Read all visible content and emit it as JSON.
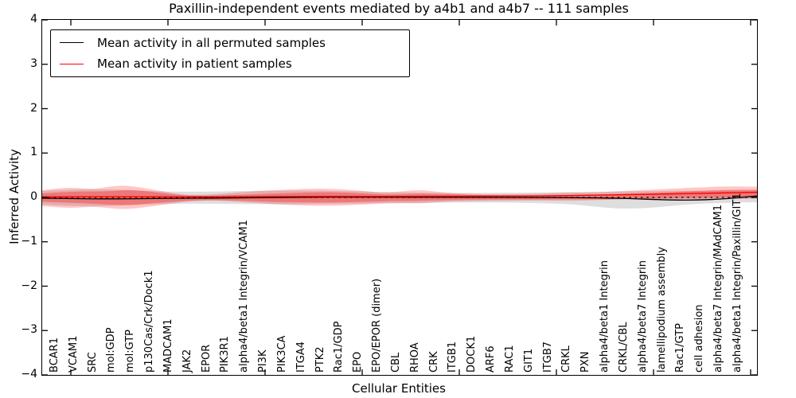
{
  "title": "Paxillin-independent events mediated by a4b1 and a4b7 -- 111 samples",
  "axes": {
    "xlabel": "Cellular Entities",
    "ylabel": "Inferred Activity",
    "y_tick_labels": [
      "4",
      "3",
      "2",
      "1",
      "0",
      "−1",
      "−2",
      "−3",
      "−4"
    ],
    "y_tick_values": [
      4,
      3,
      2,
      1,
      0,
      -1,
      -2,
      -3,
      -4
    ]
  },
  "legend": {
    "entries": [
      {
        "label": "Mean activity in all permuted samples",
        "color": "#000000"
      },
      {
        "label": "Mean activity in patient samples",
        "color": "#ff0000"
      }
    ]
  },
  "colors": {
    "permuted_line": "#000000",
    "patient_line": "#ff0000",
    "permuted_band": "rgba(0,0,0,0.13)",
    "patient_band_outer": "rgba(255,0,0,0.22)",
    "patient_band_inner": "rgba(255,0,0,0.30)"
  },
  "chart_data": {
    "type": "line",
    "title": "Paxillin-independent events mediated by a4b1 and a4b7 -- 111 samples",
    "xlabel": "Cellular Entities",
    "ylabel": "Inferred Activity",
    "ylim": [
      -4,
      4
    ],
    "legend_position": "upper left",
    "grid": false,
    "zero_reference_line": "black dotted at y=0",
    "categories": [
      "BCAR1",
      "VCAM1",
      "SRC",
      "mol:GDP",
      "mol:GTP",
      "p130Cas/Crk/Dock1",
      "MADCAM1",
      "JAK2",
      "EPOR",
      "PIK3R1",
      "alpha4/beta1 Integrin/VCAM1",
      "PI3K",
      "PIK3CA",
      "ITGA4",
      "PTK2",
      "Rac1/GDP",
      "EPO",
      "EPO/EPOR (dimer)",
      "CBL",
      "RHOA",
      "CRK",
      "ITGB1",
      "DOCK1",
      "ARF6",
      "RAC1",
      "GIT1",
      "ITGB7",
      "CRKL",
      "PXN",
      "alpha4/beta1 Integrin",
      "CRKL/CBL",
      "alpha4/beta7 Integrin",
      "lamellipodium assembly",
      "Rac1/GTP",
      "cell adhesion",
      "alpha4/beta7 Integrin/MAdCAM1",
      "alpha4/beta1 Integrin/Paxillin/GIT1"
    ],
    "series": [
      {
        "name": "Mean activity in all permuted samples",
        "color": "#000000",
        "values": [
          -0.02,
          -0.03,
          -0.02,
          -0.01,
          0.0,
          0.01,
          0.01,
          0.0,
          0.0,
          0.0,
          0.01,
          0.01,
          0.0,
          0.0,
          0.0,
          0.0,
          -0.01,
          0.0,
          0.0,
          0.0,
          0.0,
          0.0,
          0.0,
          0.0,
          0.0,
          -0.01,
          -0.01,
          0.0,
          0.0,
          -0.01,
          -0.02,
          -0.04,
          -0.06,
          -0.06,
          -0.04,
          0.0,
          0.03
        ],
        "band_half_width": [
          0.15,
          0.18,
          0.16,
          0.14,
          0.13,
          0.13,
          0.12,
          0.12,
          0.13,
          0.13,
          0.14,
          0.14,
          0.14,
          0.13,
          0.12,
          0.12,
          0.11,
          0.11,
          0.11,
          0.1,
          0.1,
          0.1,
          0.1,
          0.1,
          0.1,
          0.1,
          0.1,
          0.1,
          0.1,
          0.1,
          0.12,
          0.16,
          0.2,
          0.22,
          0.2,
          0.16,
          0.14
        ],
        "band_note": "light gray shaded std band around permuted mean"
      },
      {
        "name": "Mean activity in patient samples",
        "color": "#ff0000",
        "values": [
          0.0,
          0.01,
          0.01,
          0.01,
          0.0,
          0.01,
          0.01,
          0.01,
          0.01,
          0.01,
          0.02,
          0.02,
          0.01,
          0.01,
          0.01,
          0.01,
          0.01,
          0.01,
          0.01,
          0.01,
          0.01,
          0.02,
          0.02,
          0.02,
          0.03,
          0.04,
          0.04,
          0.04,
          0.05,
          0.06,
          0.06,
          0.07,
          0.08,
          0.09,
          0.1,
          0.11,
          0.12
        ],
        "band_half_width": [
          0.2,
          0.24,
          0.27,
          0.2,
          0.12,
          0.1,
          0.14,
          0.08,
          0.06,
          0.12,
          0.18,
          0.2,
          0.19,
          0.16,
          0.1,
          0.12,
          0.15,
          0.15,
          0.1,
          0.07,
          0.06,
          0.06,
          0.07,
          0.08,
          0.08,
          0.09,
          0.08,
          0.07,
          0.06,
          0.07,
          0.08,
          0.09,
          0.1,
          0.11,
          0.12,
          0.13,
          0.13
        ],
        "band_note": "translucent red shaded std band (two opacity levels) around patient mean"
      }
    ],
    "sample_count_in_title": 111
  }
}
